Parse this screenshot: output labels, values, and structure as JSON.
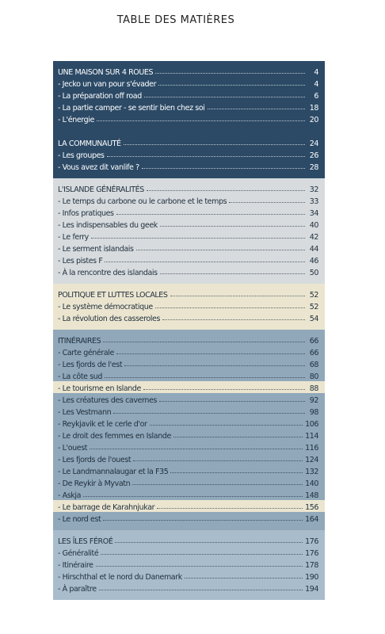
{
  "title": "TABLE DES MATIÈRES",
  "blocks": [
    {
      "background": "#2c4a66",
      "color": "#ffffff",
      "groups": [
        {
          "heading": "UNE MAISON SUR 4 ROUES",
          "page": "4",
          "entries": [
            {
              "text": "- Jecko un van pour s'évader",
              "page": "4"
            },
            {
              "text": "- La préparation off road",
              "page": "6"
            },
            {
              "text": "- La partie camper - se sentir bien chez soi",
              "page": "18"
            },
            {
              "text": "- L'énergie",
              "page": "20"
            }
          ]
        },
        {
          "heading": "LA COMMUNAUTÉ",
          "page": "24",
          "entries": [
            {
              "text": "- Les groupes",
              "page": "26"
            },
            {
              "text": "- Vous avez dit vanlife ?",
              "page": "28"
            }
          ]
        }
      ]
    },
    {
      "background": "#d7dbde",
      "color": "#1f2f3d",
      "groups": [
        {
          "heading": "L'ISLANDE GÉNÉRALITÉS",
          "page": "32",
          "entries": [
            {
              "text": "- Le temps du carbone ou le carbone et le temps",
              "page": "33"
            },
            {
              "text": "- Infos pratiques",
              "page": "34"
            },
            {
              "text": "- Les indispensables du geek",
              "page": "40"
            },
            {
              "text": "- Le ferry",
              "page": "42"
            },
            {
              "text": "- Le serment islandais",
              "page": "44"
            },
            {
              "text": "- Les pistes F",
              "page": "46"
            },
            {
              "text": "- À la rencontre des islandais",
              "page": "50"
            }
          ]
        }
      ]
    },
    {
      "background": "#ebe5d0",
      "color": "#1f2f3d",
      "groups": [
        {
          "heading": "POLITIQUE ET LUTTES LOCALES",
          "page": "52",
          "entries": [
            {
              "text": "- Le système démocratique",
              "page": "52"
            },
            {
              "text": "- La révolution des casseroles",
              "page": "54"
            }
          ]
        }
      ]
    },
    {
      "background": "#90a8ba",
      "color": "#1f2f3d",
      "groups": [
        {
          "heading": "ITINÉRAIRES",
          "page": "66",
          "entries": [
            {
              "text": "- Carte générale",
              "page": "66"
            },
            {
              "text": "- Les fjords de l'est",
              "page": "68"
            },
            {
              "text": "- La côte sud",
              "page": "80"
            },
            {
              "text": "- Le tourisme en Islande",
              "page": "88",
              "background": "#ebe5d0"
            },
            {
              "text": "- Les créatures des cavernes",
              "page": "92"
            },
            {
              "text": "- Les Vestmann",
              "page": "98"
            },
            {
              "text": "- Reykjavik et le cerle d'or",
              "page": "106"
            },
            {
              "text": "- Le droit des femmes en Islande",
              "page": "114"
            },
            {
              "text": "- L'ouest",
              "page": "116"
            },
            {
              "text": "- Les fjords de l'ouest",
              "page": "124"
            },
            {
              "text": "- Le Landmannalaugar et la F35",
              "page": "132"
            },
            {
              "text": "- De Reykir à Myvatn",
              "page": "140"
            },
            {
              "text": "- Askja",
              "page": "148"
            },
            {
              "text": "- Le barrage de Karahnjukar",
              "page": "156",
              "background": "#ebe5d0"
            },
            {
              "text": "- Le nord est",
              "page": "164"
            }
          ]
        }
      ]
    },
    {
      "background": "#a9bccb",
      "color": "#1f2f3d",
      "groups": [
        {
          "heading": "LES ÎLES FÉROÉ",
          "page": "176",
          "entries": [
            {
              "text": "- Généralité",
              "page": "176"
            },
            {
              "text": "- Itinéraire",
              "page": "178"
            },
            {
              "text": "- Hirschthal et le nord du Danemark",
              "page": "190"
            },
            {
              "text": "- À paraître",
              "page": "194"
            }
          ]
        }
      ]
    }
  ]
}
